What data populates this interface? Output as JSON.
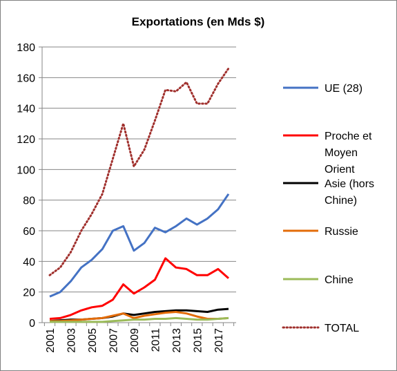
{
  "chart_data": {
    "type": "line",
    "title": "Exportations  (en Mds $)",
    "xlabel": "",
    "ylabel": "",
    "ylim": [
      0,
      180
    ],
    "yticks": [
      0,
      20,
      40,
      60,
      80,
      100,
      120,
      140,
      160,
      180
    ],
    "x": [
      2001,
      2002,
      2003,
      2004,
      2005,
      2006,
      2007,
      2008,
      2009,
      2010,
      2011,
      2012,
      2013,
      2014,
      2015,
      2016,
      2017,
      2018
    ],
    "xtick_labels": [
      "2001",
      "2003",
      "2005",
      "2007",
      "2009",
      "2011",
      "2013",
      "2015",
      "2017"
    ],
    "grid": "horizontal",
    "legend_position": "right",
    "series": [
      {
        "name": "UE (28)",
        "color": "#4472c4",
        "style": "solid",
        "values": [
          17,
          20,
          27,
          36,
          41,
          48,
          60,
          63,
          47,
          52,
          62,
          59,
          63,
          68,
          64,
          68,
          74,
          84
        ]
      },
      {
        "name": "Proche et Moyen Orient",
        "color": "#ff0000",
        "style": "solid",
        "values": [
          2.5,
          3,
          5,
          8,
          10,
          11,
          15,
          25,
          19,
          23,
          28,
          42,
          36,
          35,
          31,
          31,
          35,
          29
        ]
      },
      {
        "name": "Asie (hors Chine)",
        "color": "#000000",
        "style": "solid",
        "values": [
          1,
          1.5,
          2,
          2,
          2.5,
          3,
          4,
          6,
          5,
          6,
          7,
          7.5,
          8,
          8,
          7.5,
          7,
          8.5,
          9
        ]
      },
      {
        "name": "Russie",
        "color": "#e36c09",
        "style": "solid",
        "values": [
          1,
          1,
          1.5,
          2,
          2.5,
          3,
          4.5,
          6,
          3,
          4.5,
          5.5,
          6.5,
          7,
          6,
          4,
          2.5,
          2.5,
          3
        ]
      },
      {
        "name": "Chine",
        "color": "#9bbb59",
        "style": "solid",
        "values": [
          0.5,
          0.5,
          0.5,
          0.5,
          0.5,
          0.5,
          1,
          1.5,
          2,
          2,
          2.5,
          2.5,
          3,
          2.5,
          2,
          2,
          2.5,
          3
        ]
      },
      {
        "name": "TOTAL",
        "color": "#a0302d",
        "style": "dotted",
        "values": [
          31,
          36,
          46,
          60,
          71,
          84,
          107,
          130,
          102,
          113,
          132,
          152,
          151,
          157,
          143,
          143,
          156,
          166
        ]
      }
    ]
  }
}
